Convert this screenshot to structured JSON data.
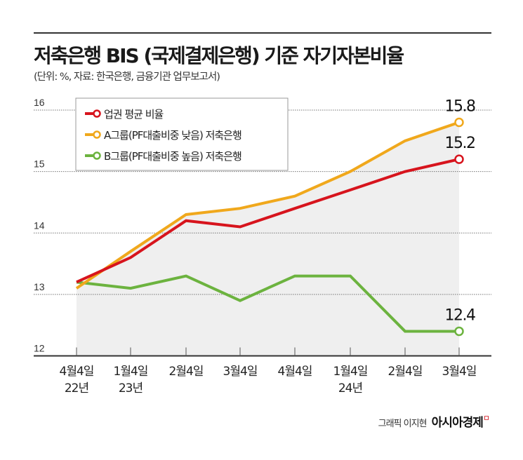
{
  "title": "저축은행 BIS (국제결제은행) 기준 자기자본비율",
  "subtitle": "(단위: %, 자료: 한국은행, 금융기관 업무보고서)",
  "credit": {
    "author": "그래픽 이지현",
    "logo": "아시아경제"
  },
  "chart_data": {
    "type": "line",
    "categories": [
      [
        "4월4일",
        "22년"
      ],
      [
        "1월4일",
        "23년"
      ],
      [
        "2월4일",
        ""
      ],
      [
        "3월4일",
        ""
      ],
      [
        "4월4일",
        ""
      ],
      [
        "1월4일",
        "24년"
      ],
      [
        "2월4일",
        ""
      ],
      [
        "3월4일",
        ""
      ]
    ],
    "ylim": [
      12,
      16
    ],
    "yticks": [
      "12",
      "13",
      "14",
      "15",
      "16"
    ],
    "grid": true,
    "legend_position": "top-left",
    "series": [
      {
        "name": "업권 평균 비율",
        "color": "#d7141d",
        "values": [
          13.2,
          13.6,
          14.2,
          14.1,
          14.4,
          14.7,
          15.0,
          15.2
        ],
        "end_label": "15.2"
      },
      {
        "name": "A그룹(PF대출비중 낮음) 저축은행",
        "color": "#f0a81c",
        "values": [
          13.1,
          13.7,
          14.3,
          14.4,
          14.6,
          15.0,
          15.5,
          15.8
        ],
        "end_label": "15.8"
      },
      {
        "name": "B그룹(PF대출비중 높음) 저축은행",
        "color": "#6cb33f",
        "values": [
          13.2,
          13.1,
          13.3,
          12.9,
          13.3,
          13.3,
          12.4,
          12.4
        ],
        "end_label": "12.4"
      }
    ]
  }
}
